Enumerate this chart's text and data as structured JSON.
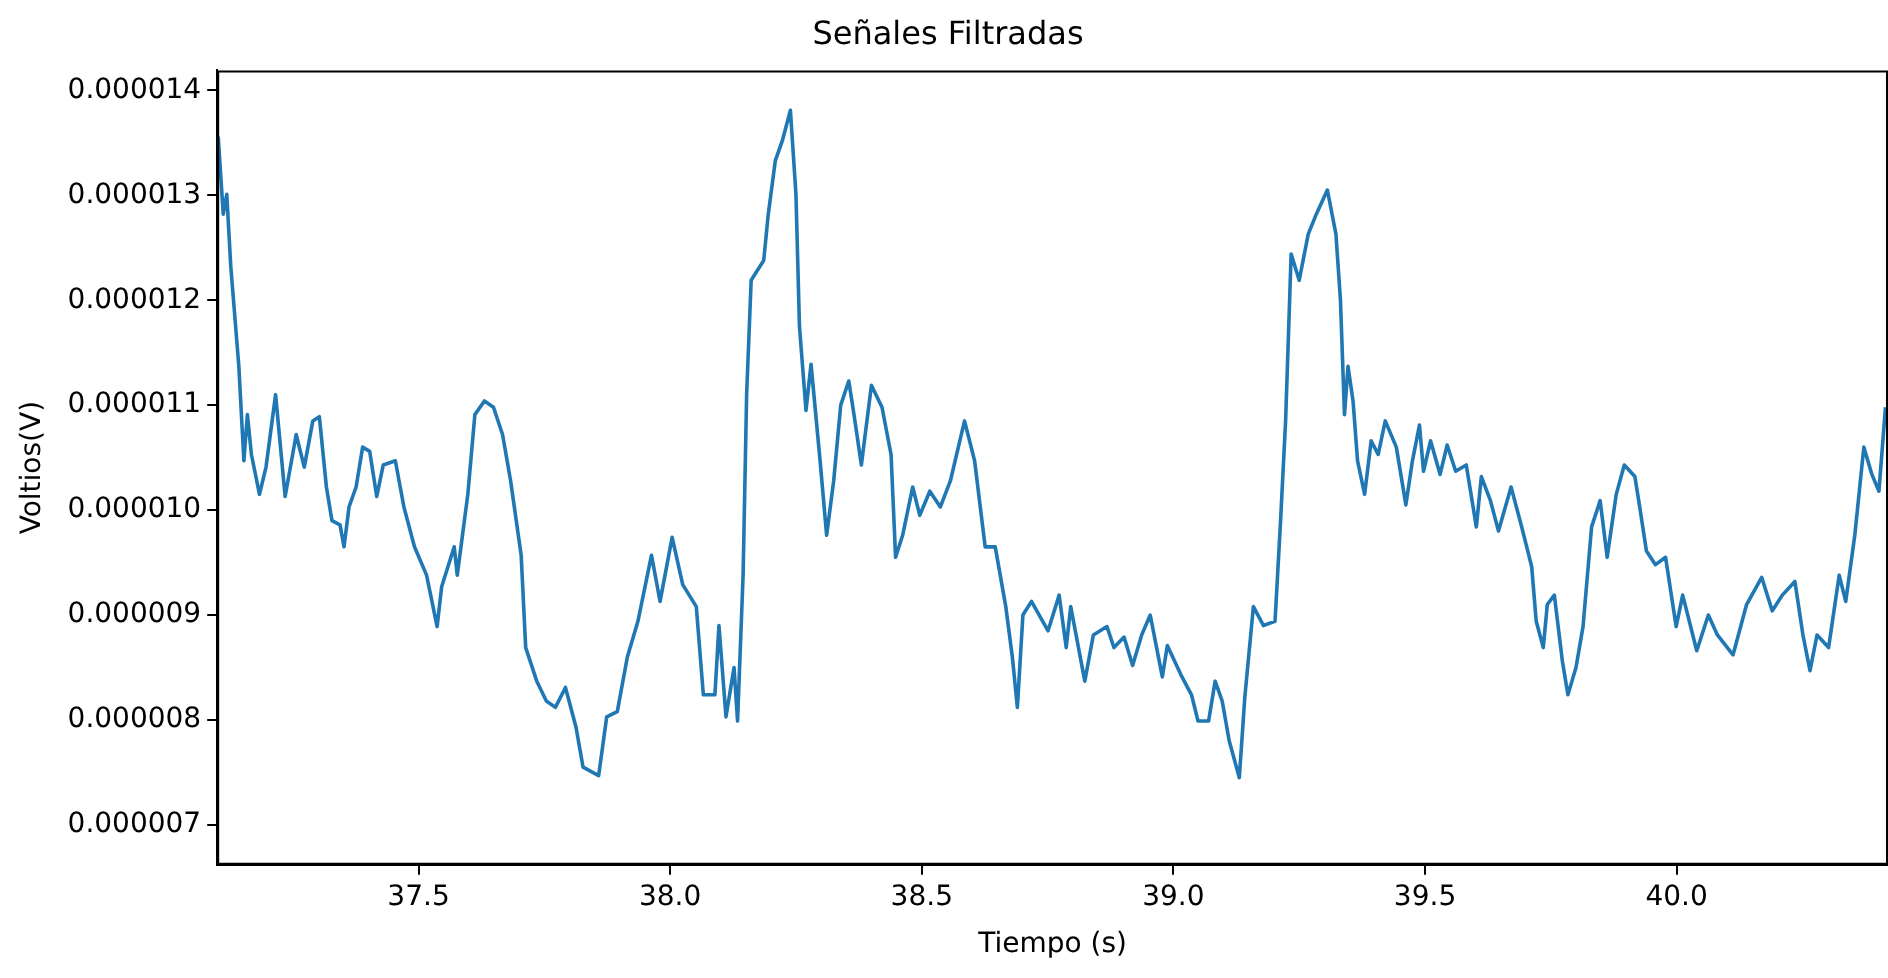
{
  "chart_data": {
    "type": "line",
    "title": "Señales Filtradas",
    "xlabel": "Tiempo (s)",
    "ylabel": "Voltios(V)",
    "xlim": [
      37.1,
      40.42
    ],
    "ylim": [
      6.62e-06,
      1.419e-05
    ],
    "xticks": [
      37.5,
      {
        "value": 38,
        "label": "38.0"
      },
      38.5,
      {
        "value": 39,
        "label": "39.0"
      },
      39.5,
      {
        "value": 40,
        "label": "40.0"
      }
    ],
    "yticks": [
      {
        "value": 7e-06,
        "label": "0.000007"
      },
      {
        "value": 8e-06,
        "label": "0.000008"
      },
      {
        "value": 9e-06,
        "label": "0.000009"
      },
      {
        "value": 1e-05,
        "label": "0.000010"
      },
      {
        "value": 1.1e-05,
        "label": "0.000011"
      },
      {
        "value": 1.2e-05,
        "label": "0.000012"
      },
      {
        "value": 1.3e-05,
        "label": "0.000013"
      },
      {
        "value": 1.4e-05,
        "label": "0.000014"
      }
    ],
    "grid": false,
    "legend": false,
    "marker": "none",
    "line_style": "solid",
    "x": [
      37.102,
      37.112,
      37.119,
      37.127,
      37.143,
      37.153,
      37.16,
      37.168,
      37.184,
      37.197,
      37.216,
      37.235,
      37.257,
      37.273,
      37.29,
      37.303,
      37.317,
      37.328,
      37.344,
      37.352,
      37.362,
      37.376,
      37.389,
      37.403,
      37.417,
      37.43,
      37.454,
      37.471,
      37.492,
      37.516,
      37.537,
      37.546,
      37.571,
      37.577,
      37.598,
      37.612,
      37.631,
      37.649,
      37.667,
      37.683,
      37.704,
      37.713,
      37.735,
      37.754,
      37.772,
      37.792,
      37.813,
      37.827,
      37.858,
      37.874,
      37.895,
      37.915,
      37.936,
      37.963,
      37.98,
      38.004,
      38.025,
      38.052,
      38.066,
      38.089,
      38.097,
      38.111,
      38.127,
      38.134,
      38.145,
      38.152,
      38.161,
      38.186,
      38.195,
      38.209,
      38.223,
      38.239,
      38.25,
      38.257,
      38.27,
      38.28,
      38.298,
      38.311,
      38.325,
      38.339,
      38.355,
      38.366,
      38.38,
      38.4,
      38.421,
      38.439,
      38.448,
      38.462,
      38.482,
      38.496,
      38.516,
      38.537,
      38.557,
      38.585,
      38.605,
      38.626,
      38.646,
      38.667,
      38.68,
      38.69,
      38.701,
      38.718,
      38.751,
      38.773,
      38.787,
      38.796,
      38.824,
      38.841,
      38.868,
      38.882,
      38.902,
      38.919,
      38.937,
      38.954,
      38.978,
      38.988,
      39.015,
      39.036,
      39.049,
      39.07,
      39.083,
      39.097,
      39.111,
      39.131,
      39.142,
      39.159,
      39.179,
      39.202,
      39.213,
      39.223,
      39.234,
      39.25,
      39.268,
      39.284,
      39.306,
      39.323,
      39.332,
      39.34,
      39.347,
      39.357,
      39.366,
      39.38,
      39.393,
      39.407,
      39.421,
      39.443,
      39.462,
      39.475,
      39.489,
      39.497,
      39.511,
      39.53,
      39.544,
      39.561,
      39.582,
      39.602,
      39.612,
      39.63,
      39.646,
      39.671,
      39.691,
      39.712,
      39.721,
      39.735,
      39.743,
      39.757,
      39.773,
      39.784,
      39.8,
      39.814,
      39.831,
      39.848,
      39.862,
      39.88,
      39.896,
      39.917,
      39.926,
      39.94,
      39.958,
      39.978,
      39.999,
      40.012,
      40.04,
      40.063,
      40.081,
      40.112,
      40.139,
      40.169,
      40.19,
      40.21,
      40.235,
      40.251,
      40.265,
      40.279,
      40.302,
      40.323,
      40.336,
      40.354,
      40.372,
      40.388,
      40.402,
      40.415
    ],
    "series": [
      {
        "color": "#1f77b4",
        "values": [
          1.356e-05,
          1.282e-05,
          1.301e-05,
          1.232e-05,
          1.137e-05,
          1.047e-05,
          1.091e-05,
          1.053e-05,
          1.015e-05,
          1.041e-05,
          1.11e-05,
          1.013e-05,
          1.072e-05,
          1.041e-05,
          1.085e-05,
          1.089e-05,
          1.022e-05,
          9.9e-06,
          9.86e-06,
          9.65e-06,
          1.003e-05,
          1.022e-05,
          1.06e-05,
          1.056e-05,
          1.013e-05,
          1.043e-05,
          1.047e-05,
          1.003e-05,
          9.65e-06,
          9.38e-06,
          8.89e-06,
          9.27e-06,
          9.65e-06,
          9.38e-06,
          1.015e-05,
          1.091e-05,
          1.104e-05,
          1.098e-05,
          1.072e-05,
          1.028e-05,
          9.57e-06,
          8.69e-06,
          8.37e-06,
          8.18e-06,
          8.12e-06,
          8.31e-06,
          7.93e-06,
          7.55e-06,
          7.47e-06,
          8.03e-06,
          8.08e-06,
          8.6e-06,
          8.94e-06,
          9.57e-06,
          9.13e-06,
          9.74e-06,
          9.29e-06,
          9.08e-06,
          8.24e-06,
          8.24e-06,
          8.9e-06,
          8.03e-06,
          8.5e-06,
          7.99e-06,
          9.38e-06,
          1.11e-05,
          1.219e-05,
          1.238e-05,
          1.282e-05,
          1.333e-05,
          1.352e-05,
          1.381e-05,
          1.301e-05,
          1.175e-05,
          1.095e-05,
          1.139e-05,
          1.047e-05,
          9.76e-06,
          1.028e-05,
          1.1e-05,
          1.123e-05,
          1.089e-05,
          1.043e-05,
          1.119e-05,
          1.098e-05,
          1.053e-05,
          9.55e-06,
          9.76e-06,
          1.022e-05,
          9.95e-06,
          1.018e-05,
          1.003e-05,
          1.028e-05,
          1.085e-05,
          1.047e-05,
          9.65e-06,
          9.65e-06,
          9.08e-06,
          8.6e-06,
          8.12e-06,
          9e-06,
          9.13e-06,
          8.85e-06,
          9.19e-06,
          8.69e-06,
          9.08e-06,
          8.37e-06,
          8.81e-06,
          8.89e-06,
          8.69e-06,
          8.79e-06,
          8.52e-06,
          8.81e-06,
          9e-06,
          8.41e-06,
          8.71e-06,
          8.43e-06,
          8.24e-06,
          7.99e-06,
          7.99e-06,
          8.37e-06,
          8.18e-06,
          7.8e-06,
          7.45e-06,
          8.22e-06,
          9.08e-06,
          8.9e-06,
          8.94e-06,
          9.9e-06,
          1.085e-05,
          1.244e-05,
          1.219e-05,
          1.263e-05,
          1.282e-05,
          1.305e-05,
          1.263e-05,
          1.2e-05,
          1.091e-05,
          1.137e-05,
          1.104e-05,
          1.047e-05,
          1.015e-05,
          1.066e-05,
          1.053e-05,
          1.085e-05,
          1.06e-05,
          1.005e-05,
          1.047e-05,
          1.081e-05,
          1.037e-05,
          1.066e-05,
          1.034e-05,
          1.062e-05,
          1.037e-05,
          1.043e-05,
          9.84e-06,
          1.032e-05,
          1.009e-05,
          9.8e-06,
          1.022e-05,
          9.86e-06,
          9.46e-06,
          8.94e-06,
          8.69e-06,
          9.1e-06,
          9.19e-06,
          8.56e-06,
          8.24e-06,
          8.5e-06,
          8.89e-06,
          9.84e-06,
          1.009e-05,
          9.55e-06,
          1.015e-05,
          1.043e-05,
          1.032e-05,
          1.005e-05,
          9.61e-06,
          9.48e-06,
          9.55e-06,
          8.89e-06,
          9.19e-06,
          8.66e-06,
          9e-06,
          8.81e-06,
          8.62e-06,
          9.1e-06,
          9.36e-06,
          9.04e-06,
          9.19e-06,
          9.32e-06,
          8.81e-06,
          8.47e-06,
          8.81e-06,
          8.69e-06,
          9.38e-06,
          9.13e-06,
          9.76e-06,
          1.06e-05,
          1.034e-05,
          1.018e-05,
          1.098e-05
        ]
      }
    ]
  }
}
